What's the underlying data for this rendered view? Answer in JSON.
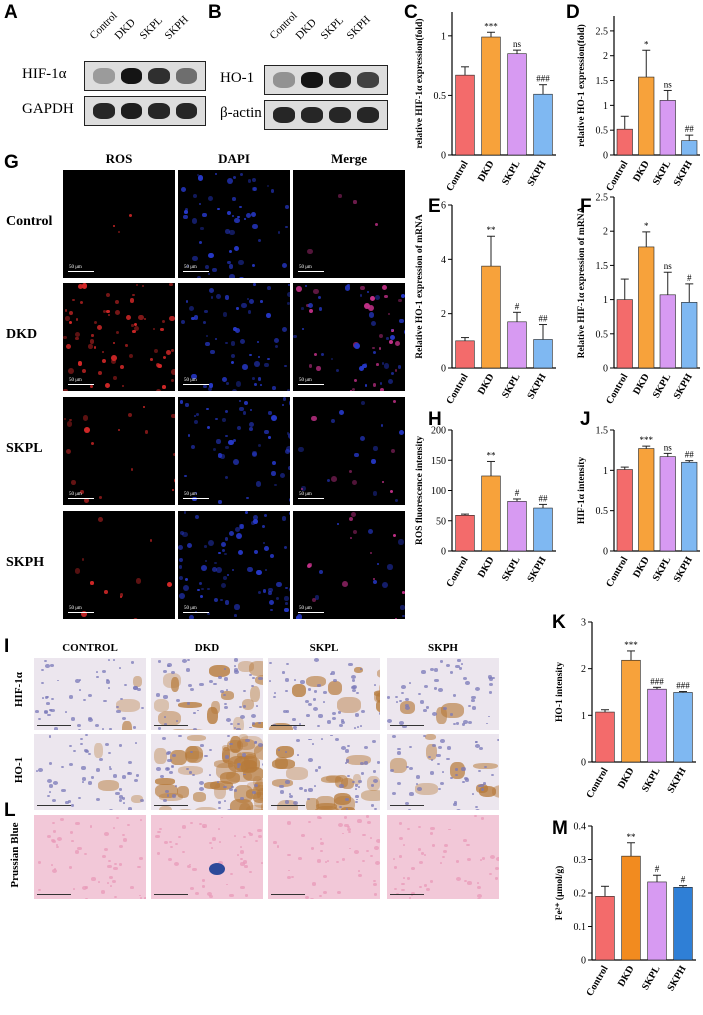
{
  "panel_letters": {
    "A": "A",
    "B": "B",
    "C": "C",
    "D": "D",
    "E": "E",
    "F": "F",
    "G": "G",
    "H": "H",
    "I": "I",
    "J": "J",
    "K": "K",
    "L": "L",
    "M": "M"
  },
  "blot_A": {
    "lanes": [
      "Control",
      "DKD",
      "SKPL",
      "SKPH"
    ],
    "rows": [
      "HIF-1α",
      "GAPDH"
    ],
    "intensity": [
      [
        0.25,
        1.0,
        0.85,
        0.5
      ],
      [
        0.9,
        0.95,
        0.9,
        0.9
      ]
    ]
  },
  "blot_B": {
    "lanes": [
      "Control",
      "DKD",
      "SKPL",
      "SKPH"
    ],
    "rows": [
      "HO-1",
      "β-actin"
    ],
    "intensity": [
      [
        0.3,
        1.0,
        0.9,
        0.75
      ],
      [
        0.9,
        0.9,
        0.9,
        0.9
      ]
    ]
  },
  "fluorescence": {
    "columns": [
      "ROS",
      "DAPI",
      "Merge"
    ],
    "rows": [
      "Control",
      "DKD",
      "SKPL",
      "SKPH"
    ],
    "scale_bar": "50 μm"
  },
  "ihc": {
    "columns": [
      "CONTROL",
      "DKD",
      "SKPL",
      "SKPH"
    ],
    "rows": [
      "HIF-1α",
      "HO-1",
      "Prussian Blue"
    ]
  },
  "colors": {
    "Control": "#f36b6b",
    "DKD": "#f7a23b",
    "SKPL": "#d79af2",
    "SKPH": "#7fb8f2",
    "DKD_M": "#f28b1f",
    "SKPH_M": "#2f7fd6",
    "ros": "#d42828",
    "dapi": "#2638c8",
    "merge": "#c8328c",
    "ihc_bg": "#ece6ee",
    "ihc_brown": "#b67a3a",
    "he_pink": "#e89ab8"
  },
  "chart_data": [
    {
      "id": "C",
      "type": "bar",
      "categories": [
        "Control",
        "DKD",
        "SKPL",
        "SKPH"
      ],
      "values": [
        0.67,
        0.99,
        0.85,
        0.51
      ],
      "errors": [
        0.07,
        0.04,
        0.03,
        0.08
      ],
      "ylabel": "relative HIF-1α expression(fold)",
      "ylim": [
        0,
        1.2
      ],
      "ticks": [
        0.0,
        0.5,
        1.0
      ],
      "sig": [
        "",
        "***",
        "ns",
        "###"
      ]
    },
    {
      "id": "D",
      "type": "bar",
      "categories": [
        "Control",
        "DKD",
        "SKPL",
        "SKPH"
      ],
      "values": [
        0.52,
        1.57,
        1.1,
        0.29
      ],
      "errors": [
        0.26,
        0.54,
        0.2,
        0.11
      ],
      "ylabel": "relative HO-1 expression(fold)",
      "ylim": [
        0,
        2.8
      ],
      "ticks": [
        0.0,
        0.5,
        1.0,
        1.5,
        2.0,
        2.5
      ],
      "sig": [
        "",
        "*",
        "ns",
        "##"
      ]
    },
    {
      "id": "E",
      "type": "bar",
      "categories": [
        "Control",
        "DKD",
        "SKPL",
        "SKPH"
      ],
      "values": [
        1.0,
        3.75,
        1.7,
        1.05
      ],
      "errors": [
        0.12,
        1.1,
        0.35,
        0.55
      ],
      "ylabel": "Relative HO-1 expression of mRNA",
      "ylim": [
        0,
        6
      ],
      "ticks": [
        0,
        2,
        4,
        6
      ],
      "sig": [
        "",
        "**",
        "#",
        "##"
      ]
    },
    {
      "id": "F",
      "type": "bar",
      "categories": [
        "Control",
        "DKD",
        "SKPL",
        "SKPH"
      ],
      "values": [
        1.0,
        1.77,
        1.07,
        0.96
      ],
      "errors": [
        0.3,
        0.22,
        0.33,
        0.27
      ],
      "ylabel": "Relative HIF-1α expression of mRNA",
      "ylim": [
        0,
        2.5
      ],
      "ticks": [
        0.0,
        0.5,
        1.0,
        1.5,
        2.0,
        2.5
      ],
      "sig": [
        "",
        "*",
        "ns",
        "#"
      ]
    },
    {
      "id": "H",
      "type": "bar",
      "categories": [
        "Control",
        "DKD",
        "SKPL",
        "SKPH"
      ],
      "values": [
        59,
        124,
        82,
        71
      ],
      "errors": [
        2,
        24,
        4,
        6
      ],
      "ylabel": "ROS fluorescence intensity",
      "ylim": [
        0,
        200
      ],
      "ticks": [
        0,
        50,
        100,
        150,
        200
      ],
      "sig": [
        "",
        "**",
        "#",
        "##"
      ]
    },
    {
      "id": "J",
      "type": "bar",
      "categories": [
        "Control",
        "DKD",
        "SKPL",
        "SKPH"
      ],
      "values": [
        1.01,
        1.27,
        1.17,
        1.1
      ],
      "errors": [
        0.03,
        0.03,
        0.04,
        0.02
      ],
      "ylabel": "HIF-1α intensity",
      "ylim": [
        0,
        1.5
      ],
      "ticks": [
        0.0,
        0.5,
        1.0,
        1.5
      ],
      "sig": [
        "",
        "***",
        "ns",
        "##"
      ]
    },
    {
      "id": "K",
      "type": "bar",
      "categories": [
        "Control",
        "DKD",
        "SKPL",
        "SKPH"
      ],
      "values": [
        1.07,
        2.18,
        1.56,
        1.49
      ],
      "errors": [
        0.05,
        0.2,
        0.04,
        0.02
      ],
      "ylabel": "HO-1 intensity",
      "ylim": [
        0,
        3
      ],
      "ticks": [
        0,
        1,
        2,
        3
      ],
      "sig": [
        "",
        "***",
        "###",
        "###"
      ]
    },
    {
      "id": "M",
      "type": "bar",
      "categories": [
        "Control",
        "DKD",
        "SKPL",
        "SKPH"
      ],
      "values": [
        0.19,
        0.31,
        0.233,
        0.217
      ],
      "errors": [
        0.03,
        0.04,
        0.02,
        0.005
      ],
      "ylabel": "Fe²⁺ (μmol/g)",
      "ylim": [
        0,
        0.4
      ],
      "ticks": [
        0.0,
        0.1,
        0.2,
        0.3,
        0.4
      ],
      "sig": [
        "",
        "**",
        "#",
        "#"
      ]
    }
  ]
}
